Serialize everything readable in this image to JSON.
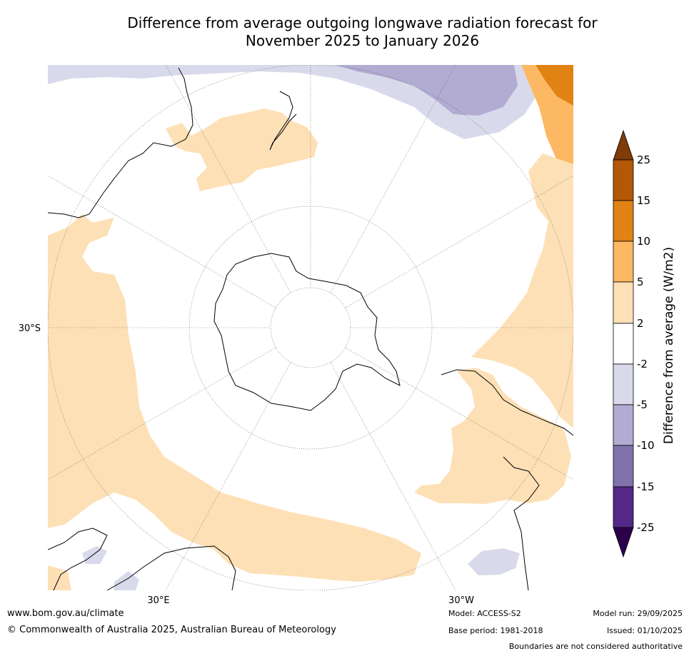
{
  "title_line1": "Difference from average outgoing longwave radiation forecast for",
  "title_line2": "November 2025 to January 2026",
  "axis_labels": {
    "lat": "30°S",
    "lon_left": "30°E",
    "lon_right": "30°W"
  },
  "colorbar": {
    "title": "Difference from average (W/m2)",
    "ticks": [
      "25",
      "15",
      "10",
      "5",
      "2",
      "-2",
      "-5",
      "-10",
      "-15",
      "-25"
    ],
    "colors": {
      "over": "#7f3b08",
      "b15_25": "#b35806",
      "b10_15": "#e08214",
      "b5_10": "#fdb863",
      "b2_5": "#fee0b6",
      "neutral": "#ffffff",
      "bm5_m2": "#d8daeb",
      "bm10_m5": "#b2abd2",
      "bm15_m10": "#8073ac",
      "bm25_m15": "#542788",
      "under": "#2d004b"
    }
  },
  "footer": {
    "website": "www.bom.gov.au/climate",
    "copyright": "© Commonwealth of Australia 2025, Australian Bureau of Meteorology",
    "model": "Model: ACCESS-S2",
    "base_period": "Base period: 1981-2018",
    "model_run": "Model run: 29/09/2025",
    "issued": "Issued: 01/10/2025",
    "disclaimer": "Boundaries are not considered authoritative"
  }
}
